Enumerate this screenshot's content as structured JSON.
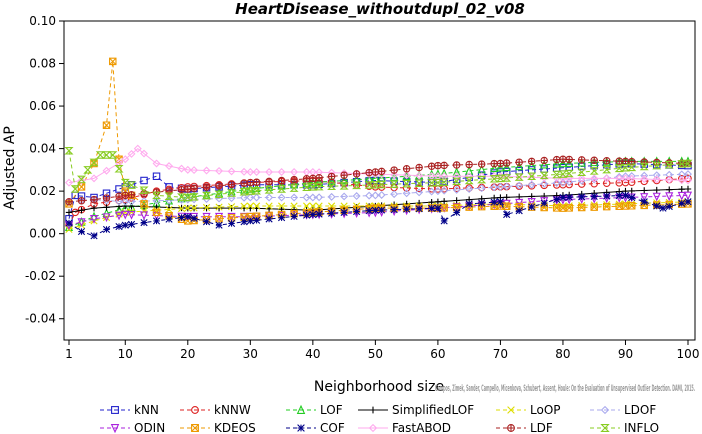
{
  "chart_data": {
    "type": "line",
    "title": "HeartDisease_withoutdupl_02_v08",
    "xlabel": "Neighborhood size",
    "ylabel": "Adjusted AP",
    "xlim": [
      1,
      100
    ],
    "ylim": [
      -0.05,
      0.1
    ],
    "x_ticks": [
      1,
      10,
      20,
      30,
      40,
      50,
      60,
      70,
      80,
      90,
      100
    ],
    "y_ticks": [
      -0.04,
      -0.02,
      0.0,
      0.02,
      0.04,
      0.06,
      0.08,
      0.1
    ],
    "y_tick_labels": [
      "-0.04",
      "-0.02",
      "0.00",
      "0.02",
      "0.04",
      "0.06",
      "0.08",
      "0.10"
    ],
    "x_tick_labels": [
      "1",
      "10",
      "20",
      "30",
      "40",
      "50",
      "60",
      "70",
      "80",
      "90",
      "100"
    ],
    "grid": false,
    "legend_position": "bottom",
    "watermark": "Campos, Zimek, Sander, Campello, Micenkova, Schubert, Assent, Houle: On the Evaluation of Unsupervised Outlier Detection. DAMI, 2015.",
    "series": [
      {
        "name": "kNN",
        "color": "#2222cc",
        "marker": "square",
        "dash": "4,3",
        "points": [
          [
            1,
            0.007
          ],
          [
            2,
            0.018
          ],
          [
            5,
            0.017
          ],
          [
            10,
            0.022
          ],
          [
            15,
            0.027
          ],
          [
            17,
            0.022
          ],
          [
            20,
            0.021
          ],
          [
            30,
            0.023
          ],
          [
            40,
            0.023
          ],
          [
            50,
            0.025
          ],
          [
            60,
            0.024
          ],
          [
            70,
            0.029
          ],
          [
            80,
            0.031
          ],
          [
            90,
            0.033
          ],
          [
            100,
            0.032
          ]
        ]
      },
      {
        "name": "kNNW",
        "color": "#dd2222",
        "marker": "circle",
        "dash": "4,3",
        "points": [
          [
            1,
            0.004
          ],
          [
            2,
            0.01
          ],
          [
            5,
            0.014
          ],
          [
            10,
            0.016
          ],
          [
            15,
            0.02
          ],
          [
            20,
            0.022
          ],
          [
            30,
            0.024
          ],
          [
            40,
            0.025
          ],
          [
            50,
            0.022
          ],
          [
            60,
            0.021
          ],
          [
            70,
            0.022
          ],
          [
            80,
            0.023
          ],
          [
            90,
            0.024
          ],
          [
            100,
            0.026
          ]
        ]
      },
      {
        "name": "LOF",
        "color": "#22cc22",
        "marker": "triangle",
        "dash": "4,3",
        "points": [
          [
            1,
            0.003
          ],
          [
            5,
            0.008
          ],
          [
            10,
            0.012
          ],
          [
            20,
            0.017
          ],
          [
            30,
            0.021
          ],
          [
            40,
            0.024
          ],
          [
            50,
            0.026
          ],
          [
            60,
            0.028
          ],
          [
            70,
            0.031
          ],
          [
            80,
            0.033
          ],
          [
            90,
            0.034
          ],
          [
            100,
            0.034
          ]
        ]
      },
      {
        "name": "SimplifiedLOF",
        "color": "#000000",
        "marker": "plus",
        "dash": "",
        "points": [
          [
            1,
            0.01
          ],
          [
            5,
            0.012
          ],
          [
            10,
            0.013
          ],
          [
            20,
            0.012
          ],
          [
            30,
            0.012
          ],
          [
            40,
            0.011
          ],
          [
            50,
            0.013
          ],
          [
            60,
            0.015
          ],
          [
            70,
            0.017
          ],
          [
            80,
            0.018
          ],
          [
            90,
            0.02
          ],
          [
            100,
            0.021
          ]
        ]
      },
      {
        "name": "LoOP",
        "color": "#dddd00",
        "marker": "x",
        "dash": "4,3",
        "points": [
          [
            1,
            0.002
          ],
          [
            5,
            0.006
          ],
          [
            10,
            0.01
          ],
          [
            20,
            0.012
          ],
          [
            30,
            0.013
          ],
          [
            40,
            0.013
          ],
          [
            50,
            0.013
          ],
          [
            60,
            0.013
          ],
          [
            70,
            0.014
          ],
          [
            80,
            0.013
          ],
          [
            90,
            0.014
          ],
          [
            100,
            0.015
          ]
        ]
      },
      {
        "name": "LDOF",
        "color": "#aaaaee",
        "marker": "diamond",
        "dash": "4,3",
        "points": [
          [
            1,
            0.015
          ],
          [
            5,
            0.016
          ],
          [
            10,
            0.015
          ],
          [
            20,
            0.016
          ],
          [
            30,
            0.017
          ],
          [
            40,
            0.017
          ],
          [
            50,
            0.018
          ],
          [
            60,
            0.02
          ],
          [
            70,
            0.022
          ],
          [
            80,
            0.024
          ],
          [
            90,
            0.027
          ],
          [
            100,
            0.028
          ]
        ]
      },
      {
        "name": "ODIN",
        "color": "#aa22dd",
        "marker": "triangle-down",
        "dash": "4,3",
        "points": [
          [
            1,
            0.004
          ],
          [
            5,
            0.007
          ],
          [
            10,
            0.009
          ],
          [
            20,
            0.008
          ],
          [
            30,
            0.008
          ],
          [
            40,
            0.009
          ],
          [
            50,
            0.01
          ],
          [
            60,
            0.012
          ],
          [
            70,
            0.014
          ],
          [
            80,
            0.016
          ],
          [
            90,
            0.017
          ],
          [
            100,
            0.018
          ]
        ]
      },
      {
        "name": "KDEOS",
        "color": "#ee9900",
        "marker": "square-x",
        "dash": "4,3",
        "points": [
          [
            1,
            0.014
          ],
          [
            3,
            0.022
          ],
          [
            5,
            0.033
          ],
          [
            7,
            0.051
          ],
          [
            8,
            0.081
          ],
          [
            9,
            0.035
          ],
          [
            10,
            0.02
          ],
          [
            15,
            0.01
          ],
          [
            20,
            0.006
          ],
          [
            30,
            0.008
          ],
          [
            40,
            0.01
          ],
          [
            50,
            0.012
          ],
          [
            60,
            0.012
          ],
          [
            70,
            0.013
          ],
          [
            80,
            0.012
          ],
          [
            90,
            0.013
          ],
          [
            100,
            0.014
          ]
        ]
      },
      {
        "name": "COF",
        "color": "#000088",
        "marker": "asterisk",
        "dash": "4,3",
        "points": [
          [
            1,
            0.005
          ],
          [
            3,
            0.001
          ],
          [
            5,
            -0.001
          ],
          [
            7,
            0.002
          ],
          [
            10,
            0.004
          ],
          [
            15,
            0.006
          ],
          [
            20,
            0.008
          ],
          [
            25,
            0.004
          ],
          [
            30,
            0.006
          ],
          [
            40,
            0.009
          ],
          [
            50,
            0.011
          ],
          [
            60,
            0.012
          ],
          [
            61,
            0.006
          ],
          [
            65,
            0.014
          ],
          [
            70,
            0.015
          ],
          [
            71,
            0.009
          ],
          [
            80,
            0.017
          ],
          [
            90,
            0.018
          ],
          [
            96,
            0.012
          ],
          [
            100,
            0.015
          ]
        ]
      },
      {
        "name": "FastABOD",
        "color": "#ffaaee",
        "marker": "diamond",
        "dash": "",
        "points": [
          [
            1,
            0.024
          ],
          [
            5,
            0.026
          ],
          [
            10,
            0.035
          ],
          [
            12,
            0.04
          ],
          [
            15,
            0.033
          ],
          [
            20,
            0.03
          ],
          [
            30,
            0.029
          ],
          [
            40,
            0.029
          ],
          [
            50,
            0.028
          ],
          [
            60,
            0.027
          ],
          [
            70,
            0.027
          ],
          [
            80,
            0.026
          ],
          [
            90,
            0.026
          ],
          [
            100,
            0.025
          ]
        ]
      },
      {
        "name": "LDF",
        "color": "#aa2222",
        "marker": "circle-plus",
        "dash": "4,3",
        "points": [
          [
            1,
            0.015
          ],
          [
            5,
            0.016
          ],
          [
            10,
            0.018
          ],
          [
            20,
            0.021
          ],
          [
            30,
            0.024
          ],
          [
            40,
            0.026
          ],
          [
            50,
            0.029
          ],
          [
            60,
            0.032
          ],
          [
            70,
            0.033
          ],
          [
            80,
            0.035
          ],
          [
            90,
            0.034
          ],
          [
            100,
            0.033
          ]
        ]
      },
      {
        "name": "INFLO",
        "color": "#88cc22",
        "marker": "hourglass",
        "dash": "4,3",
        "points": [
          [
            1,
            0.039
          ],
          [
            2,
            0.021
          ],
          [
            4,
            0.03
          ],
          [
            6,
            0.037
          ],
          [
            8,
            0.037
          ],
          [
            10,
            0.024
          ],
          [
            15,
            0.018
          ],
          [
            20,
            0.017
          ],
          [
            30,
            0.02
          ],
          [
            40,
            0.022
          ],
          [
            50,
            0.023
          ],
          [
            60,
            0.024
          ],
          [
            70,
            0.026
          ],
          [
            80,
            0.028
          ],
          [
            90,
            0.031
          ],
          [
            100,
            0.033
          ]
        ]
      }
    ]
  }
}
